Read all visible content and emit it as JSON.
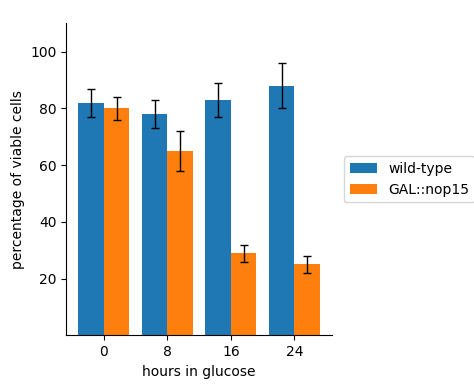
{
  "chart_data": {
    "type": "bar",
    "categories": [
      "0",
      "8",
      "16",
      "24"
    ],
    "series": [
      {
        "name": "wild-type",
        "values": [
          82,
          78,
          83,
          88
        ],
        "errors": [
          5,
          5,
          6,
          8
        ]
      },
      {
        "name": "GAL::nop15",
        "values": [
          80,
          65,
          29,
          25
        ],
        "errors": [
          4,
          7,
          3,
          3
        ]
      }
    ],
    "x_label": "hours in glucose",
    "y_label": "percentage of viable cells",
    "ylim": [
      0,
      110
    ],
    "yticks": [
      20,
      40,
      60,
      80,
      100
    ],
    "grid": false,
    "legend": "right"
  }
}
